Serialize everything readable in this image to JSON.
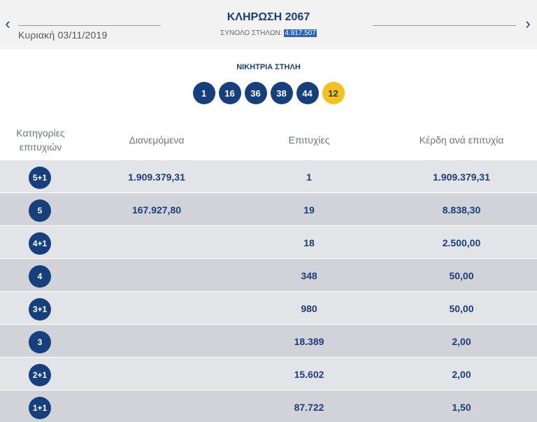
{
  "header": {
    "prev_arrow": "‹",
    "next_arrow": "›",
    "date": "Κυριακή 03/11/2019",
    "draw_title": "ΚΛΗΡΩΣΗ 2067",
    "columns_label": "ΣΥΝΟΛΟ ΣΤΗΛΩΝ:",
    "columns_value": "4.917.507"
  },
  "winning": {
    "title": "ΝΙΚΗΤΡΙΑ ΣΤΗΛΗ",
    "numbers": [
      "1",
      "16",
      "36",
      "38",
      "44"
    ],
    "joker": "12"
  },
  "table": {
    "headers": {
      "category_line1": "Κατηγορίες",
      "category_line2": "επιτυχιών",
      "distributed": "Διανεμόμενα",
      "winners": "Επιτυχίες",
      "prize": "Κέρδη ανά επιτυχία"
    },
    "rows": [
      {
        "category": "5+1",
        "distributed": "1.909.379,31",
        "winners": "1",
        "prize": "1.909.379,31"
      },
      {
        "category": "5",
        "distributed": "167.927,80",
        "winners": "19",
        "prize": "8.838,30"
      },
      {
        "category": "4+1",
        "distributed": "",
        "winners": "18",
        "prize": "2.500,00"
      },
      {
        "category": "4",
        "distributed": "",
        "winners": "348",
        "prize": "50,00"
      },
      {
        "category": "3+1",
        "distributed": "",
        "winners": "980",
        "prize": "50,00"
      },
      {
        "category": "3",
        "distributed": "",
        "winners": "18.389",
        "prize": "2,00"
      },
      {
        "category": "2+1",
        "distributed": "",
        "winners": "15.602",
        "prize": "2,00"
      },
      {
        "category": "1+1",
        "distributed": "",
        "winners": "87.722",
        "prize": "1,50"
      }
    ]
  },
  "colors": {
    "primary": "#163f7e",
    "joker": "#f5c21b",
    "row_light": "#e3e4e8",
    "row_dark": "#d1d3d8"
  }
}
